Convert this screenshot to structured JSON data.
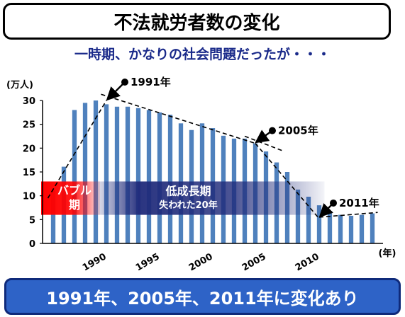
{
  "header": {
    "title": "不法就労者数の変化",
    "subtitle": "一時期、かなりの社会問題だったが・・・"
  },
  "footer": {
    "conclusion": "1991年、2005年、2011年に変化あり"
  },
  "bands": {
    "bubble_line1": "バブル",
    "bubble_line2": "期",
    "stagnation_title": "低成長期",
    "stagnation_sub": "失われた20年"
  },
  "annotations": [
    {
      "label": "1991年",
      "x": 1991,
      "y": 30.0
    },
    {
      "label": "2005年",
      "x": 2005,
      "y": 21.0
    },
    {
      "label": "2011年",
      "x": 2011,
      "y": 5.5
    }
  ],
  "colors": {
    "bar": "#4f81bd",
    "bubble_band": "#ff0000",
    "stagnation_band": "#1f2a7a",
    "subtitle": "#1a2a8a",
    "footer_bg": "#2e63c7"
  },
  "chart_data": {
    "type": "bar",
    "ylabel": "(万人)",
    "xlabel": "(年)",
    "ylim": [
      0,
      30
    ],
    "yticks": [
      0,
      5,
      10,
      15,
      20,
      25,
      30
    ],
    "xticks": [
      1990,
      1995,
      2000,
      2005,
      2010
    ],
    "categories": [
      1986,
      1987,
      1988,
      1989,
      1990,
      1991,
      1992,
      1993,
      1994,
      1995,
      1996,
      1997,
      1998,
      1999,
      2000,
      2001,
      2002,
      2003,
      2004,
      2005,
      2006,
      2007,
      2008,
      2009,
      2010,
      2011,
      2012,
      2013,
      2014,
      2015,
      2016
    ],
    "values": [
      11.1,
      16.1,
      28.0,
      29.5,
      30.0,
      29.2,
      28.7,
      28.7,
      28.4,
      28.0,
      27.5,
      27.0,
      25.2,
      23.8,
      25.2,
      24.2,
      22.6,
      22.0,
      22.0,
      21.0,
      19.3,
      17.0,
      15.0,
      11.3,
      9.8,
      8.0,
      6.8,
      6.0,
      5.8,
      6.0,
      6.3
    ],
    "trend_lines": [
      {
        "x": [
          1985.5,
          1991
        ],
        "y": [
          9.5,
          30.0
        ]
      },
      {
        "x": [
          1990.5,
          2005
        ],
        "y": [
          31.3,
          21.0
        ]
      },
      {
        "x": [
          2004,
          2007.5
        ],
        "y": [
          22.5,
          19.5
        ]
      },
      {
        "x": [
          2005,
          2011
        ],
        "y": [
          21.0,
          5.2
        ]
      },
      {
        "x": [
          2011,
          2016.5
        ],
        "y": [
          5.5,
          6.5
        ]
      }
    ]
  }
}
